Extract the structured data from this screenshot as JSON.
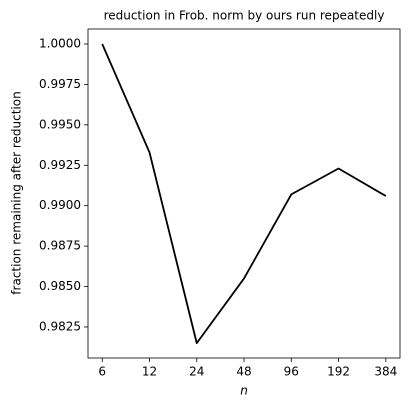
{
  "chart_data": {
    "type": "line",
    "title": "reduction in Frob. norm by ours run repeatedly",
    "x_label": "n",
    "y_label": "fraction remaining after reduction",
    "x": [
      6,
      12,
      24,
      48,
      96,
      192,
      384
    ],
    "xscale": "log",
    "xticks": [
      6,
      12,
      24,
      48,
      96,
      192,
      384
    ],
    "xlim": [
      4.87,
      472.8
    ],
    "series": [
      {
        "color": "#000000",
        "values": [
          1.0,
          0.9933,
          0.9815,
          0.9855,
          0.9907,
          0.9923,
          0.9906
        ]
      }
    ],
    "ylim": [
      0.98058,
      1.00093
    ],
    "yticks": [
      0.9825,
      {
        "value": 0.985,
        "label": "0.9850"
      },
      0.9875,
      {
        "value": 0.99,
        "label": "0.9900"
      },
      0.9925,
      {
        "value": 0.995,
        "label": "0.9950"
      },
      0.9975,
      {
        "value": 1.0,
        "label": "1.0000"
      }
    ],
    "grid": false
  }
}
